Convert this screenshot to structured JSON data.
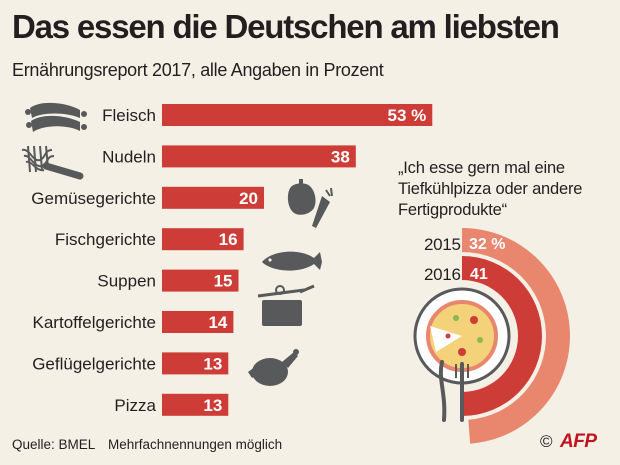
{
  "header": {
    "title": "Das essen die Deutschen am liebsten",
    "subtitle": "Ernährungsreport 2017, alle Angaben in Prozent"
  },
  "colors": {
    "bar": "#cd3c36",
    "ring_2015": "#e8876e",
    "ring_2016": "#cd3c36",
    "icon": "#58595b",
    "background": "#f4f0e6"
  },
  "chart_data": {
    "type": "bar",
    "orientation": "horizontal",
    "categories": [
      "Fleisch",
      "Nudeln",
      "Gemüsegerichte",
      "Fischgerichte",
      "Suppen",
      "Kartoffelgerichte",
      "Geflügelgerichte",
      "Pizza"
    ],
    "values": [
      53,
      38,
      20,
      16,
      15,
      14,
      13,
      13
    ],
    "value_labels": [
      "53 %",
      "38",
      "20",
      "16",
      "15",
      "14",
      "13",
      "13"
    ],
    "icons": [
      "sausage-icon",
      "fork-noodles-icon",
      "vegetables-icon",
      "",
      "fish-icon",
      "cooking-pot-icon",
      "roast-chicken-icon",
      ""
    ],
    "inset": {
      "type": "radial-bar",
      "question": "„Ich esse gern mal eine Tiefkühlpizza oder andere Fertigprodukte“",
      "categories": [
        "2015",
        "2016"
      ],
      "values": [
        32,
        41
      ],
      "value_labels": [
        "32 %",
        "41"
      ]
    }
  },
  "footer": {
    "source": "Quelle: BMEL",
    "note": "Mehrfachnennungen möglich",
    "copyright": "©",
    "logo": "AFP"
  }
}
